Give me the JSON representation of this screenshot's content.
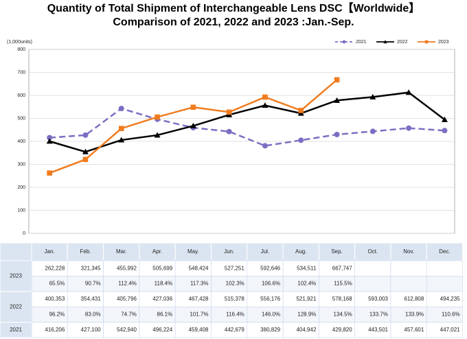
{
  "chart_data": {
    "type": "line",
    "title": "Quantity of Total Shipment of Interchangeable Lens DSC【Worldwide】",
    "subtitle": "Comparison of 2021, 2022 and 2023 :Jan.-Sep.",
    "y_label": "(1,000units)",
    "categories": [
      "Jan.",
      "Feb.",
      "Mar.",
      "Apr.",
      "May.",
      "Jun.",
      "Jul.",
      "Aug.",
      "Sep.",
      "Oct.",
      "Nov.",
      "Dec."
    ],
    "series": [
      {
        "name": "2021",
        "color": "#7b6fc4",
        "dash": true,
        "marker": "circle",
        "values": [
          416.206,
          427.1,
          542.94,
          496.224,
          459.408,
          442.679,
          380.829,
          404.942,
          429.82,
          443.501,
          457.601,
          447.021
        ]
      },
      {
        "name": "2022",
        "color": "#000000",
        "dash": false,
        "marker": "triangle",
        "values": [
          400.353,
          354.431,
          405.796,
          427.036,
          467.428,
          515.378,
          556.176,
          521.921,
          578.168,
          593.003,
          612.808,
          494.235
        ]
      },
      {
        "name": "2023",
        "color": "#f07c1f",
        "dash": false,
        "marker": "square",
        "values": [
          262.228,
          321.345,
          455.992,
          505.699,
          548.424,
          527.251,
          592.646,
          534.511,
          667.747,
          null,
          null,
          null
        ]
      }
    ],
    "ylim": [
      0,
      800
    ],
    "yticks": [
      0,
      100,
      200,
      300,
      400,
      500,
      600,
      700,
      800
    ],
    "grid": true,
    "legend": "top-right"
  },
  "table": {
    "groups": [
      {
        "year": "2023",
        "rows": [
          [
            "262,228",
            "321,345",
            "455,992",
            "505,699",
            "548,424",
            "527,251",
            "592,646",
            "534,511",
            "667,747"
          ],
          [
            "65.5%",
            "90.7%",
            "112.4%",
            "118.4%",
            "117.3%",
            "102.3%",
            "106.6%",
            "102.4%",
            "115.5%"
          ]
        ]
      },
      {
        "year": "2022",
        "rows": [
          [
            "400,353",
            "354,431",
            "405,796",
            "427,036",
            "467,428",
            "515,378",
            "556,176",
            "521,921",
            "578,168",
            "593,003",
            "612,808",
            "494,235"
          ],
          [
            "96.2%",
            "83.0%",
            "74.7%",
            "86.1%",
            "101.7%",
            "116.4%",
            "146.0%",
            "128.9%",
            "134.5%",
            "133.7%",
            "133.9%",
            "110.6%"
          ]
        ]
      },
      {
        "year": "2021",
        "rows": [
          [
            "416,206",
            "427,100",
            "542,940",
            "496,224",
            "459,408",
            "442,679",
            "380,829",
            "404,942",
            "429,820",
            "443,501",
            "457,601",
            "447,021"
          ]
        ]
      }
    ]
  }
}
